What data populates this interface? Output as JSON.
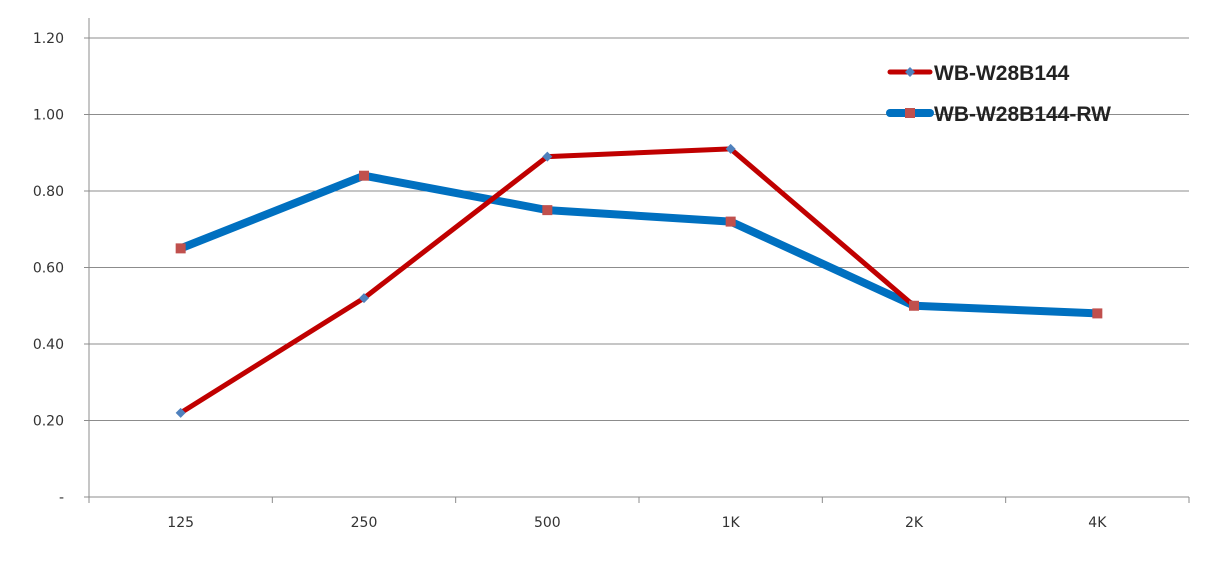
{
  "chart_data": {
    "type": "line",
    "title": "",
    "xlabel": "",
    "ylabel": "",
    "categories": [
      "125",
      "250",
      "500",
      "1K",
      "2K",
      "4K"
    ],
    "ylim": [
      0,
      1.2
    ],
    "yticks": [
      0,
      0.2,
      0.4,
      0.6,
      0.8,
      1.0,
      1.2
    ],
    "ytick_labels": [
      "-",
      "0.20",
      "0.40",
      "0.60",
      "0.80",
      "1.00",
      "1.20"
    ],
    "grid": true,
    "legend_position": "top-right",
    "series": [
      {
        "name": "WB-W28B144",
        "values": [
          0.22,
          0.52,
          0.89,
          0.91,
          0.5,
          null
        ],
        "line_color": "#c00000",
        "marker": "diamond",
        "marker_color": "#4f81bd"
      },
      {
        "name": "WB-W28B144-RW",
        "values": [
          0.65,
          0.84,
          0.75,
          0.72,
          0.5,
          0.48
        ],
        "line_color": "#0070c0",
        "marker": "square",
        "marker_color": "#c0504d"
      }
    ]
  }
}
